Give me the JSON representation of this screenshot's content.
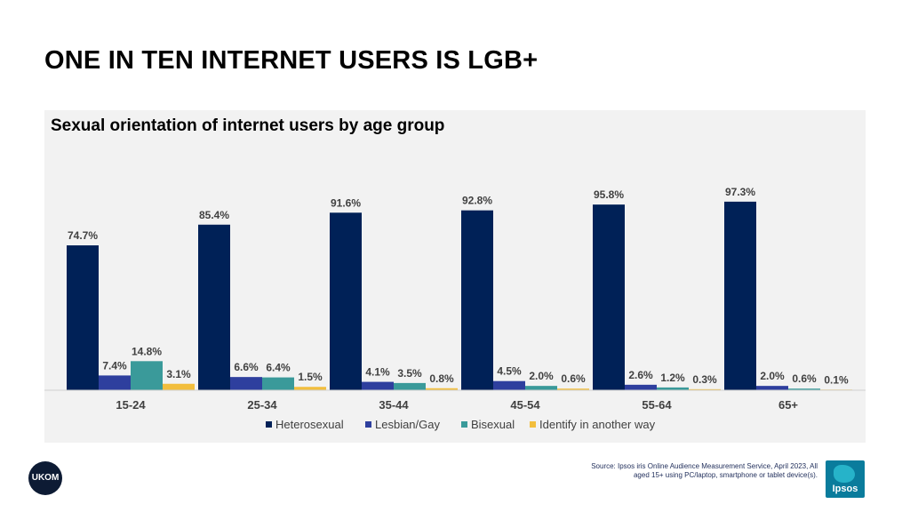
{
  "slide": {
    "title": "ONE IN TEN INTERNET USERS IS LGB+"
  },
  "footer": {
    "ukom_logo": "UKOM",
    "source": "Source: Ipsos iris Online Audience Measurement Service, April 2023, All aged 15+ using PC/laptop, smartphone or tablet device(s).",
    "ipsos_logo": "Ipsos"
  },
  "chart_data": {
    "type": "bar",
    "title": "Sexual orientation of internet users by age group",
    "categories": [
      "15-24",
      "25-34",
      "35-44",
      "45-54",
      "55-64",
      "65+"
    ],
    "series": [
      {
        "name": "Heterosexual",
        "color": "#002157",
        "values": [
          74.7,
          85.4,
          91.6,
          92.8,
          95.8,
          97.3
        ]
      },
      {
        "name": "Lesbian/Gay",
        "color": "#2e3f9e",
        "values": [
          7.4,
          6.6,
          4.1,
          4.5,
          2.6,
          2.0
        ]
      },
      {
        "name": "Bisexual",
        "color": "#3a9a9a",
        "values": [
          14.8,
          6.4,
          3.5,
          2.0,
          1.2,
          0.6
        ]
      },
      {
        "name": "Identify in another way",
        "color": "#f2be3d",
        "values": [
          3.1,
          1.5,
          0.8,
          0.6,
          0.3,
          0.1
        ]
      }
    ],
    "value_suffix": "%",
    "ylim": [
      0,
      100
    ],
    "grid": false,
    "legend_position": "bottom"
  }
}
